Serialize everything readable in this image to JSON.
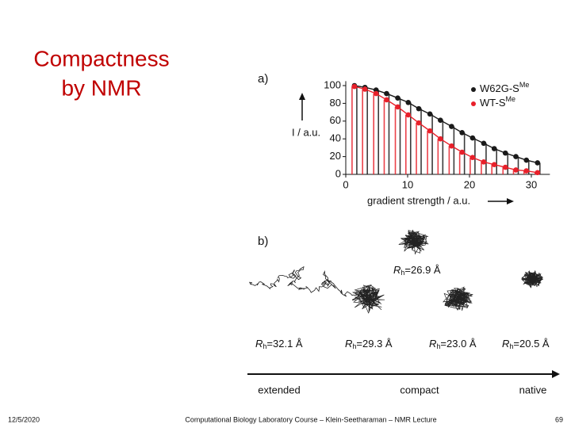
{
  "title": {
    "lines": [
      "Compactness",
      "by NMR"
    ]
  },
  "figure": {
    "panel_a": {
      "label": "a)",
      "type": "scatter",
      "y_label": "I / a.u.",
      "x_label": "gradient strength / a.u.",
      "xlim": [
        0,
        33
      ],
      "ylim": [
        0,
        105
      ],
      "xticks": [
        0,
        10,
        20,
        30
      ],
      "yticks": [
        0,
        20,
        40,
        60,
        80,
        100
      ],
      "x": [
        1.4,
        3.1,
        4.9,
        6.6,
        8.4,
        10.1,
        11.8,
        13.6,
        15.3,
        17.1,
        18.8,
        20.5,
        22.3,
        24.0,
        25.8,
        27.5,
        29.2,
        31.0
      ],
      "series": [
        {
          "name": "W62G-S",
          "superscript": "Me",
          "color": "#1a1a1a",
          "values": [
            100,
            98,
            95,
            91,
            86,
            81,
            74,
            68,
            61,
            54,
            47,
            41,
            35,
            29,
            24,
            20,
            16,
            13
          ]
        },
        {
          "name": "WT-S",
          "superscript": "Me",
          "color": "#e8202a",
          "values": [
            99,
            96,
            91,
            84,
            76,
            67,
            58,
            49,
            40,
            32,
            25,
            19,
            14,
            11,
            8,
            5,
            4,
            2
          ]
        }
      ]
    },
    "panel_b": {
      "label": "b)",
      "radii": [
        {
          "symbol": "R",
          "subscript": "h",
          "text": "=32.1 Å"
        },
        {
          "symbol": "R",
          "subscript": "h",
          "text": "=29.3 Å"
        },
        {
          "symbol": "R",
          "subscript": "h",
          "text": "=26.9 Å"
        },
        {
          "symbol": "R",
          "subscript": "h",
          "text": "=23.0 Å"
        },
        {
          "symbol": "R",
          "subscript": "h",
          "text": "=20.5 Å"
        }
      ],
      "scale": [
        "extended",
        "compact",
        "native"
      ]
    }
  },
  "footer": {
    "date": "12/5/2020",
    "course": "Computational Biology Laboratory Course – Klein-Seetharaman – NMR Lecture",
    "page": "69"
  }
}
